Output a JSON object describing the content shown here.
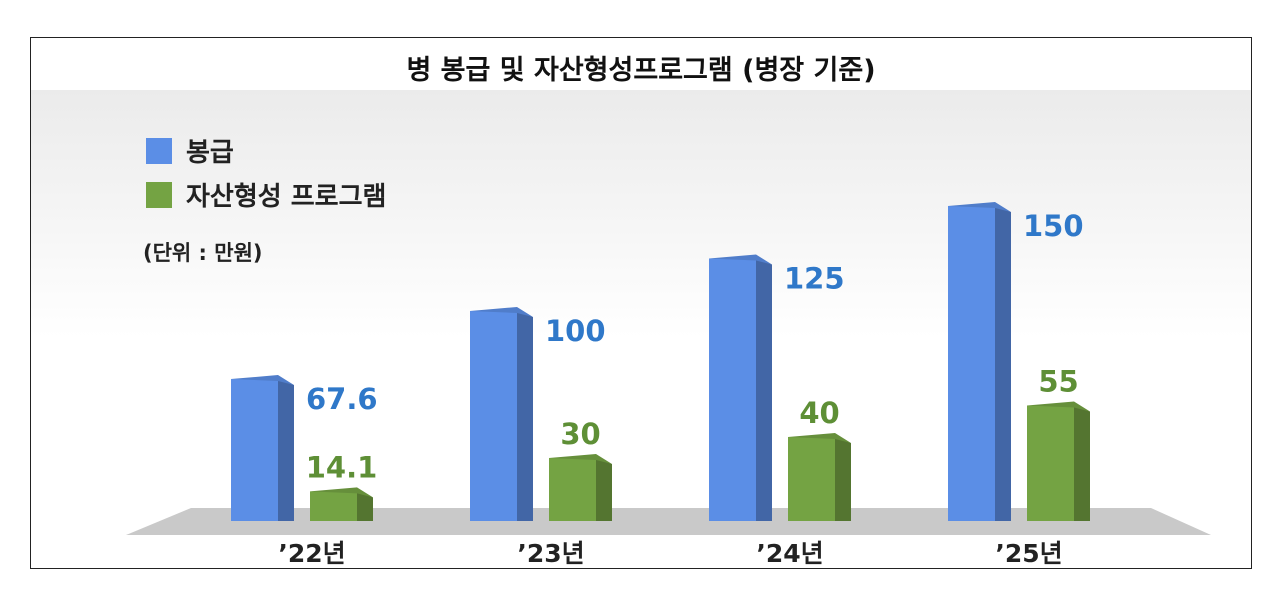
{
  "title": "병 봉급 및 자산형성프로그램 (병장 기준)",
  "unit_note": "(단위 : 만원)",
  "legend": [
    {
      "label": "봉급",
      "color": "#5b8ee6"
    },
    {
      "label": "자산형성 프로그램",
      "color": "#74a343"
    }
  ],
  "chart_data": {
    "type": "bar",
    "title": "병 봉급 및 자산형성프로그램 (병장 기준)",
    "categories": [
      "’22년",
      "’23년",
      "’24년",
      "’25년"
    ],
    "series": [
      {
        "name": "봉급",
        "values": [
          67.6,
          100,
          125,
          150
        ],
        "labels": [
          "67.6",
          "100",
          "125",
          "150"
        ],
        "color": "#5b8ee6",
        "label_color": "#2f78c9"
      },
      {
        "name": "자산형성 프로그램",
        "values": [
          14.1,
          30,
          40,
          55
        ],
        "labels": [
          "14.1",
          "30",
          "40",
          "55"
        ],
        "color": "#74a343",
        "label_color": "#5e8f36"
      }
    ],
    "unit": "만원",
    "grid": false,
    "legend_position": "top-left",
    "ylim": [
      0,
      150
    ]
  }
}
